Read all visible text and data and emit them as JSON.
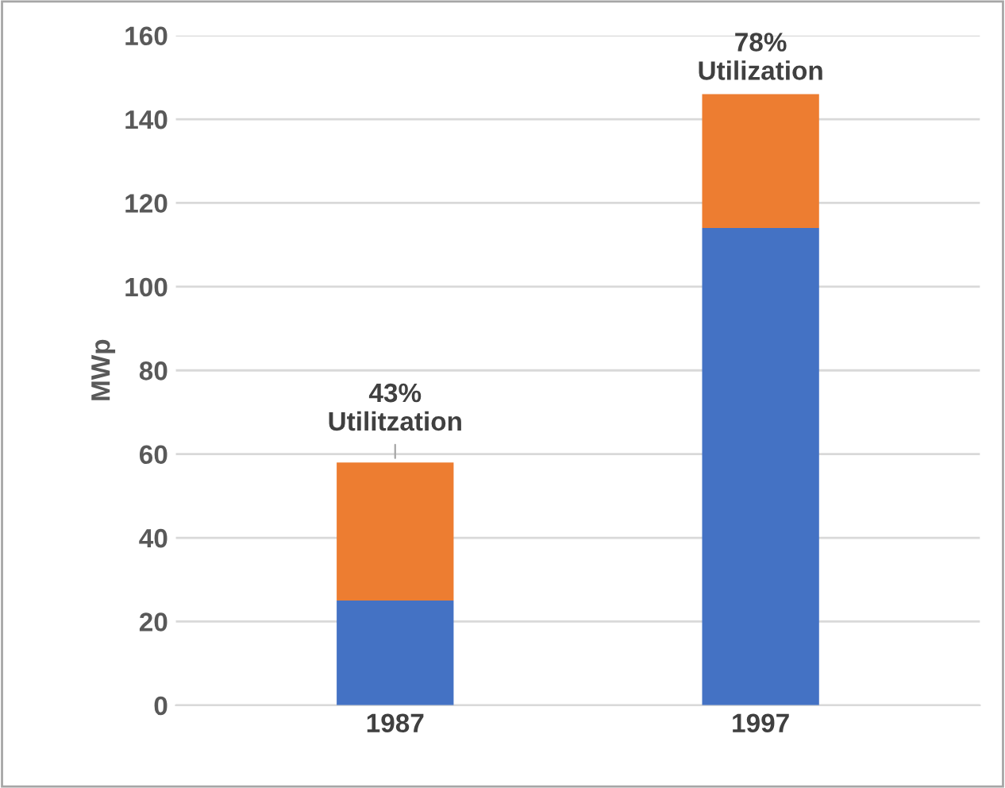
{
  "chart_data": {
    "type": "bar",
    "stacked": true,
    "ylabel": "MWp",
    "categories": [
      "1987",
      "1997"
    ],
    "series": [
      {
        "color": "#4472c4",
        "values": [
          25,
          114
        ]
      },
      {
        "color": "#ed7d31",
        "values": [
          33,
          32
        ]
      }
    ],
    "ylim": [
      0,
      160
    ],
    "yticks": [
      0,
      20,
      40,
      60,
      80,
      100,
      120,
      140,
      160
    ],
    "grid": "y",
    "legend": false,
    "annotations": [
      {
        "text": "43%\nUtilitzation",
        "x": "1987",
        "y": 58
      },
      {
        "text": "78%\nUtilization",
        "x": "1997",
        "y": 146
      }
    ]
  }
}
